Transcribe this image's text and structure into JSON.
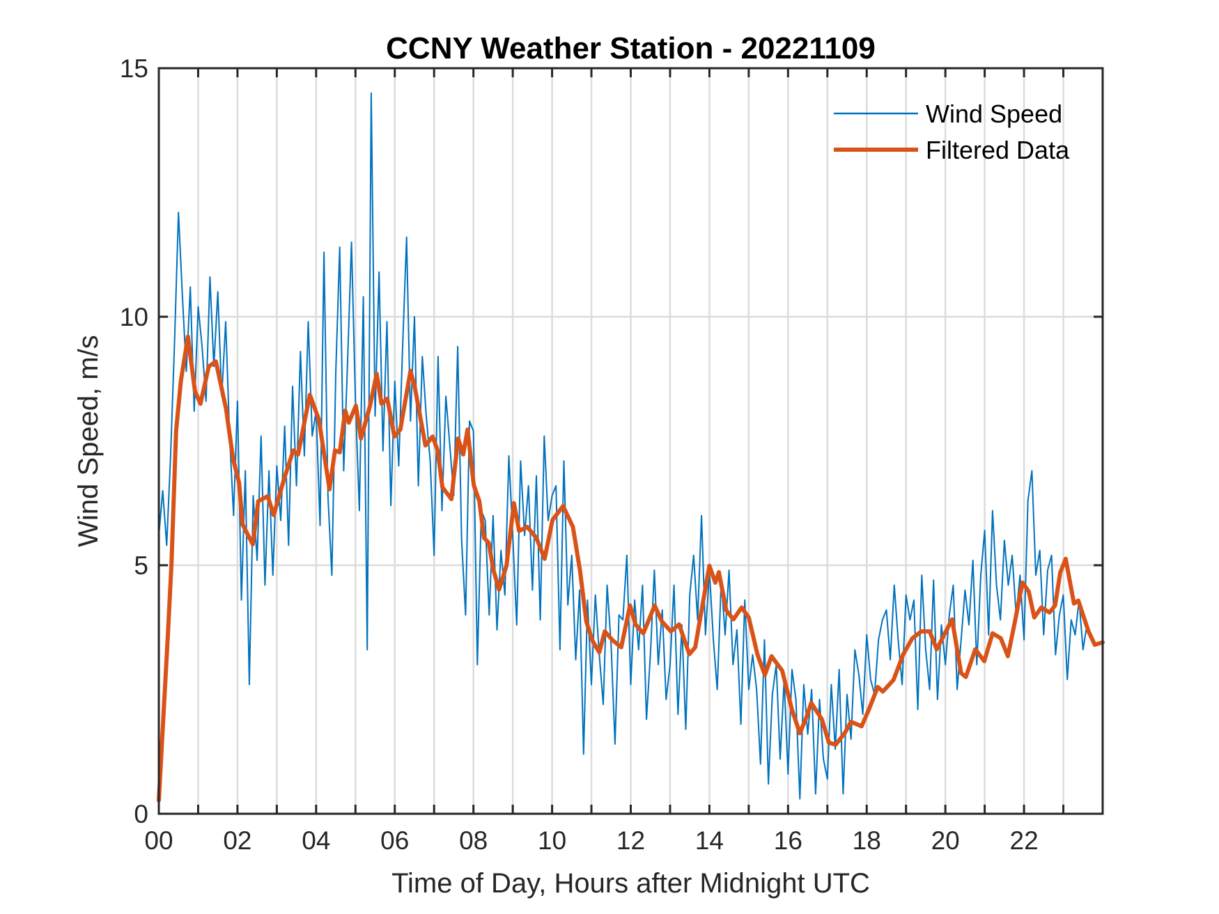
{
  "chart_data": {
    "type": "line",
    "title": "CCNY Weather Station - 20221109",
    "xlabel": "Time of Day, Hours after Midnight UTC",
    "ylabel": "Wind Speed, m/s",
    "xlim": [
      0,
      24
    ],
    "ylim": [
      0,
      15
    ],
    "grid": true,
    "x_minor_grid_step_hours": 1,
    "x_ticks": [
      0,
      2,
      4,
      6,
      8,
      10,
      12,
      14,
      16,
      18,
      20,
      22
    ],
    "x_tick_labels": [
      "00",
      "02",
      "04",
      "06",
      "08",
      "10",
      "12",
      "14",
      "16",
      "18",
      "20",
      "22"
    ],
    "y_ticks": [
      0,
      5,
      10,
      15
    ],
    "y_tick_labels": [
      "0",
      "5",
      "10",
      "15"
    ],
    "legend": {
      "placement": "top-right",
      "entries": [
        "Wind Speed",
        "Filtered Data"
      ]
    },
    "series": [
      {
        "name": "Wind Speed",
        "color": "#0072BD",
        "x_step_hours": 0.1,
        "x_start": 0,
        "values": [
          5.6,
          6.5,
          5.4,
          7.2,
          9.5,
          12.1,
          10.4,
          8.9,
          10.6,
          8.1,
          10.2,
          9.4,
          8.3,
          10.8,
          9.0,
          10.5,
          8.4,
          9.9,
          7.6,
          6.0,
          8.3,
          4.3,
          6.9,
          2.6,
          6.4,
          5.1,
          7.6,
          4.6,
          6.9,
          4.8,
          7.0,
          5.9,
          7.8,
          5.4,
          8.6,
          6.6,
          9.3,
          7.2,
          9.9,
          7.6,
          8.1,
          5.8,
          11.3,
          6.4,
          4.8,
          8.9,
          11.4,
          6.9,
          9.1,
          11.5,
          8.3,
          6.1,
          10.4,
          3.3,
          14.5,
          8.0,
          10.9,
          7.3,
          9.9,
          6.2,
          8.7,
          7.0,
          9.4,
          11.6,
          7.9,
          10.0,
          6.6,
          9.2,
          8.0,
          7.1,
          5.2,
          9.2,
          6.1,
          8.4,
          7.4,
          6.4,
          9.4,
          5.5,
          4.0,
          7.9,
          7.7,
          3.0,
          6.1,
          5.9,
          4.0,
          6.0,
          3.7,
          5.3,
          4.4,
          7.2,
          5.6,
          3.8,
          7.1,
          5.6,
          6.6,
          4.5,
          6.8,
          3.9,
          7.6,
          5.9,
          6.4,
          6.6,
          3.3,
          7.1,
          4.2,
          5.2,
          3.1,
          4.5,
          1.2,
          4.3,
          2.6,
          4.4,
          3.2,
          2.2,
          4.6,
          3.4,
          1.4,
          4.0,
          3.9,
          5.2,
          2.6,
          4.3,
          3.3,
          4.6,
          1.9,
          3.2,
          4.9,
          3.0,
          4.1,
          2.3,
          3.0,
          4.6,
          2.0,
          3.8,
          1.7,
          4.4,
          5.2,
          3.9,
          6.0,
          3.6,
          4.9,
          3.5,
          2.5,
          4.7,
          3.6,
          4.9,
          3.0,
          3.7,
          1.8,
          4.3,
          2.5,
          3.2,
          2.5,
          1.0,
          3.5,
          0.6,
          2.4,
          3.0,
          1.1,
          2.7,
          0.8,
          2.9,
          2.3,
          0.3,
          2.6,
          1.6,
          2.5,
          0.4,
          2.3,
          1.1,
          0.7,
          2.6,
          1.3,
          2.9,
          0.4,
          2.4,
          1.5,
          3.3,
          2.8,
          2.0,
          3.6,
          2.7,
          2.4,
          3.5,
          3.9,
          4.1,
          3.1,
          4.6,
          3.5,
          2.6,
          4.4,
          3.9,
          4.3,
          2.1,
          4.8,
          3.3,
          2.5,
          4.7,
          2.3,
          3.8,
          3.0,
          4.0,
          4.6,
          2.5,
          3.5,
          4.5,
          3.8,
          5.1,
          3.0,
          4.8,
          5.7,
          3.6,
          6.1,
          4.6,
          3.9,
          5.5,
          4.6,
          5.2,
          4.0,
          4.8,
          3.5,
          6.3,
          6.9,
          4.8,
          5.3,
          3.6,
          4.9,
          5.2,
          3.2,
          4.0,
          4.4,
          2.7,
          3.9,
          3.6,
          4.3,
          3.3,
          3.8,
          3.5
        ]
      },
      {
        "name": "Filtered Data",
        "color": "#D95319",
        "x": [
          0,
          0.23,
          0.32,
          0.44,
          0.56,
          0.74,
          0.92,
          1.06,
          1.27,
          1.45,
          1.71,
          1.89,
          2.04,
          2.13,
          2.39,
          2.53,
          2.77,
          2.92,
          3.19,
          3.42,
          3.54,
          3.84,
          4.07,
          4.34,
          4.48,
          4.6,
          4.74,
          4.83,
          5.01,
          5.14,
          5.37,
          5.54,
          5.66,
          5.81,
          5.99,
          6.14,
          6.4,
          6.5,
          6.78,
          6.96,
          7.09,
          7.21,
          7.44,
          7.61,
          7.74,
          7.85,
          8.01,
          8.15,
          8.27,
          8.39,
          8.5,
          8.65,
          8.84,
          9.03,
          9.16,
          9.37,
          9.6,
          9.81,
          10.01,
          10.28,
          10.53,
          10.71,
          10.87,
          11.02,
          11.2,
          11.34,
          11.54,
          11.76,
          11.98,
          12.12,
          12.32,
          12.61,
          12.79,
          13.02,
          13.23,
          13.49,
          13.64,
          13.8,
          14.0,
          14.15,
          14.24,
          14.43,
          14.61,
          14.82,
          15.0,
          15.22,
          15.41,
          15.58,
          15.85,
          16.1,
          16.3,
          16.47,
          16.59,
          16.86,
          17.04,
          17.21,
          17.44,
          17.6,
          17.87,
          18.05,
          18.28,
          18.41,
          18.68,
          18.93,
          19.16,
          19.39,
          19.6,
          19.78,
          19.99,
          20.17,
          20.4,
          20.52,
          20.76,
          20.99,
          21.2,
          21.41,
          21.59,
          21.77,
          21.96,
          22.12,
          22.26,
          22.44,
          22.65,
          22.79,
          22.92,
          23.06,
          23.27,
          23.38,
          23.64,
          23.8,
          24.0
        ],
        "values": [
          0.27,
          3.6,
          5.0,
          7.7,
          8.7,
          9.6,
          8.5,
          8.25,
          9.0,
          9.1,
          8.15,
          7.13,
          6.66,
          5.82,
          5.42,
          6.29,
          6.39,
          6.01,
          6.75,
          7.31,
          7.23,
          8.43,
          7.93,
          6.53,
          7.31,
          7.27,
          8.11,
          7.87,
          8.21,
          7.55,
          8.21,
          8.85,
          8.25,
          8.35,
          7.59,
          7.73,
          8.91,
          8.62,
          7.41,
          7.59,
          7.31,
          6.57,
          6.33,
          7.55,
          7.23,
          7.73,
          6.61,
          6.29,
          5.55,
          5.45,
          4.93,
          4.51,
          4.99,
          6.25,
          5.69,
          5.77,
          5.55,
          5.13,
          5.91,
          6.19,
          5.77,
          4.89,
          3.87,
          3.49,
          3.25,
          3.67,
          3.49,
          3.35,
          4.19,
          3.81,
          3.63,
          4.19,
          3.87,
          3.67,
          3.81,
          3.21,
          3.35,
          4.09,
          4.99,
          4.65,
          4.86,
          4.09,
          3.91,
          4.15,
          3.95,
          3.21,
          2.79,
          3.17,
          2.88,
          2.09,
          1.62,
          1.95,
          2.23,
          1.9,
          1.43,
          1.39,
          1.62,
          1.85,
          1.76,
          2.09,
          2.55,
          2.46,
          2.69,
          3.21,
          3.53,
          3.67,
          3.67,
          3.31,
          3.63,
          3.91,
          2.83,
          2.75,
          3.31,
          3.07,
          3.63,
          3.53,
          3.17,
          3.87,
          4.65,
          4.47,
          3.95,
          4.15,
          4.05,
          4.19,
          4.85,
          5.13,
          4.23,
          4.29,
          3.67,
          3.4,
          3.45
        ]
      }
    ]
  }
}
